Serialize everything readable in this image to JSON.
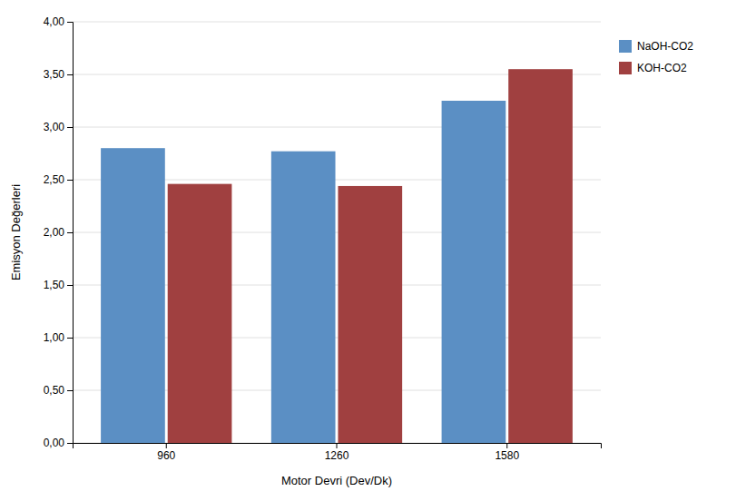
{
  "chart_data": {
    "type": "bar",
    "categories": [
      "960",
      "1260",
      "1580"
    ],
    "series": [
      {
        "name": "NaOH-CO2",
        "color": "#5B8FC4",
        "values": [
          2.8,
          2.77,
          3.25
        ]
      },
      {
        "name": "KOH-CO2",
        "color": "#A04040",
        "values": [
          2.46,
          2.44,
          3.55
        ]
      }
    ],
    "xlabel": "Motor Devri (Dev/Dk)",
    "ylabel": "Emisyon Değerleri",
    "ylim": [
      0.0,
      4.0
    ],
    "yticks": [
      {
        "value": 0.0,
        "label": "0,00"
      },
      {
        "value": 0.5,
        "label": "0,50"
      },
      {
        "value": 1.0,
        "label": "1,00"
      },
      {
        "value": 1.5,
        "label": "1,50"
      },
      {
        "value": 2.0,
        "label": "2,00"
      },
      {
        "value": 2.5,
        "label": "2,50"
      },
      {
        "value": 3.0,
        "label": "3,00"
      },
      {
        "value": 3.5,
        "label": "3,50"
      },
      {
        "value": 4.0,
        "label": "4,00"
      }
    ],
    "grid": true,
    "legend": "right"
  }
}
